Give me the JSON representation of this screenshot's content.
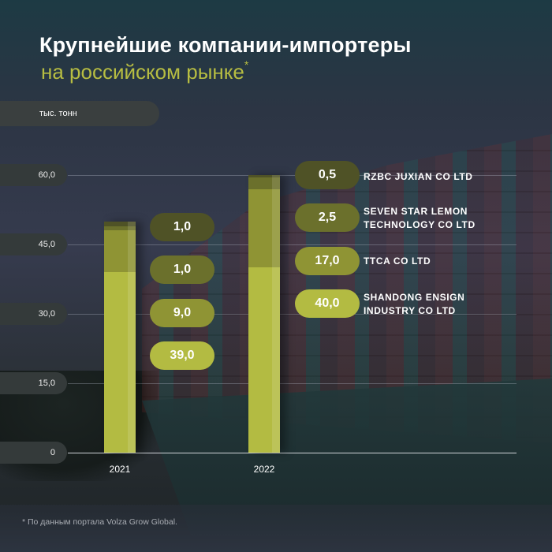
{
  "header": {
    "title": "Крупнейшие компании-импортеры",
    "subtitle": "на российском рынке",
    "subtitle_mark": "*"
  },
  "unit_label": "тыс. тонн",
  "footnote": "*  По данным портала Volza Grow Global.",
  "colors": {
    "seg1": "#b3bb42",
    "seg2": "#8f9434",
    "seg3": "#6b702c",
    "seg4": "#4f5226",
    "title": "#ffffff",
    "accent": "#b7bd42"
  },
  "chart_data": {
    "type": "bar",
    "stacked": true,
    "title": "Крупнейшие компании-импортеры на российском рынке",
    "ylabel": "тыс. тонн",
    "xlabel": "",
    "ylim": [
      0,
      60
    ],
    "yticks": [
      "0",
      "15,0",
      "30,0",
      "45,0",
      "60,0"
    ],
    "grid": true,
    "categories": [
      "2021",
      "2022"
    ],
    "bars": [
      {
        "year": "2021",
        "total": 50.0,
        "segments": [
          {
            "label": "39,0",
            "value": 39.0,
            "company": ""
          },
          {
            "label": "9,0",
            "value": 9.0,
            "company": ""
          },
          {
            "label": "1,0",
            "value": 1.0,
            "company": ""
          },
          {
            "label": "1,0",
            "value": 1.0,
            "company": ""
          }
        ]
      },
      {
        "year": "2022",
        "total": 60.0,
        "segments": [
          {
            "label": "40,0",
            "value": 40.0,
            "company": "SHANDONG ENSIGN INDUSTRY CO LTD"
          },
          {
            "label": "17,0",
            "value": 17.0,
            "company": "TTCA CO LTD"
          },
          {
            "label": "2,5",
            "value": 2.5,
            "company": "SEVEN STAR LEMON TECHNOLOGY CO LTD"
          },
          {
            "label": "0,5",
            "value": 0.5,
            "company": "RZBC JUXIAN CO LTD"
          }
        ]
      }
    ]
  },
  "legend_2021": [
    {
      "value": "1,0"
    },
    {
      "value": "1,0"
    },
    {
      "value": "9,0"
    },
    {
      "value": "39,0"
    }
  ],
  "legend_2022": [
    {
      "value": "0,5",
      "company_line1": "RZBC JUXIAN CO LTD",
      "company_line2": ""
    },
    {
      "value": "2,5",
      "company_line1": "SEVEN STAR LEMON",
      "company_line2": "TECHNOLOGY CO LTD"
    },
    {
      "value": "17,0",
      "company_line1": "TTCA CO LTD",
      "company_line2": ""
    },
    {
      "value": "40,0",
      "company_line1": "SHANDONG ENSIGN",
      "company_line2": "INDUSTRY CO LTD"
    }
  ]
}
